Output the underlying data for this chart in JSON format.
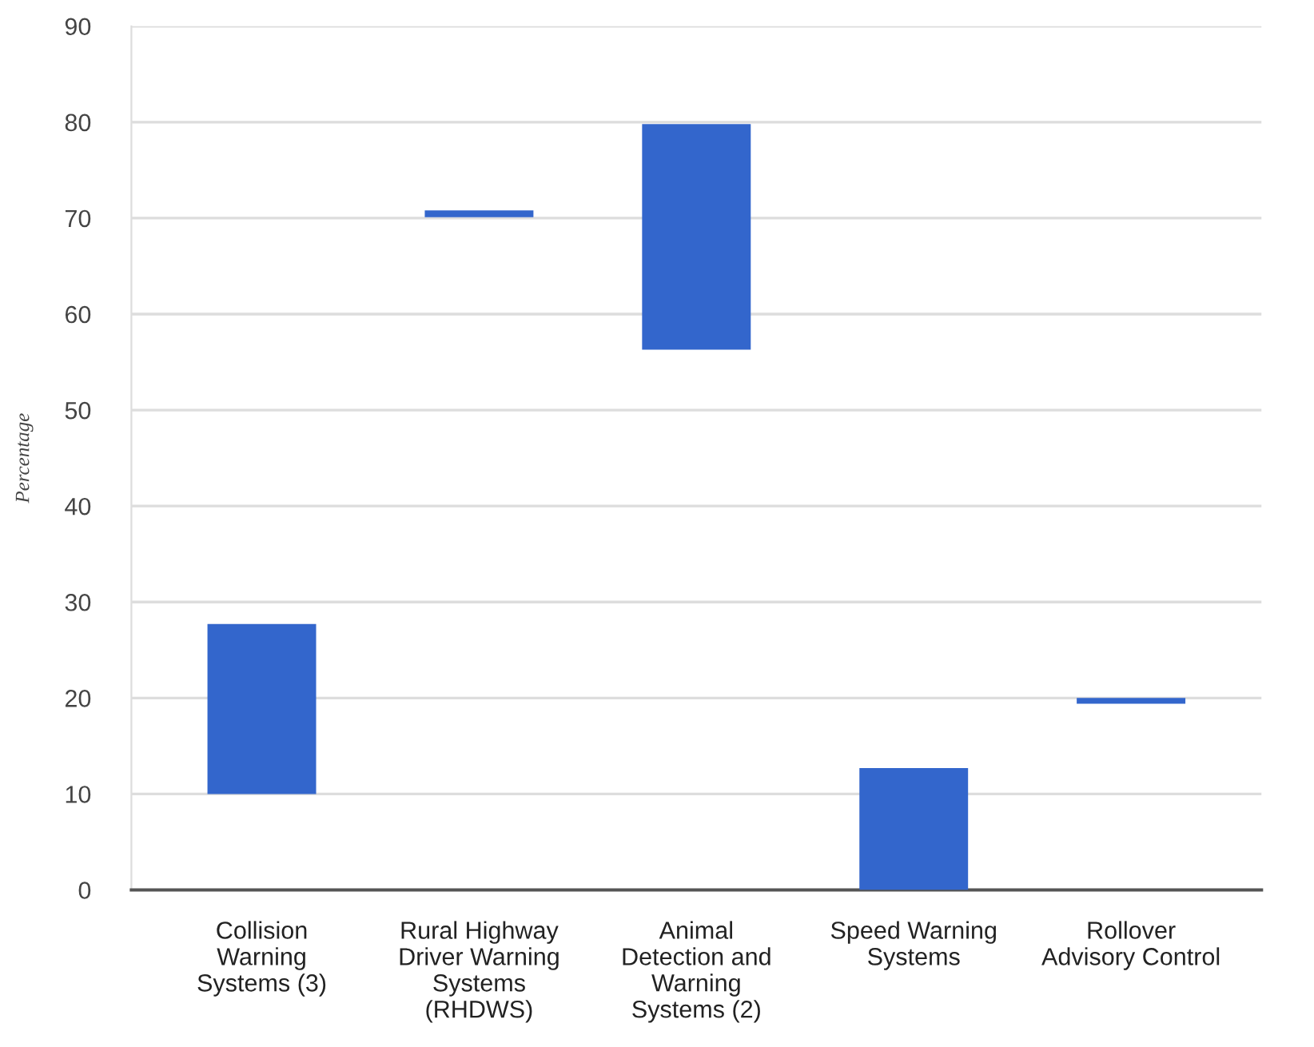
{
  "chart_data": {
    "type": "bar",
    "ylabel": "Percentage",
    "categories": [
      "Collision\nWarning\nSystems (3)",
      "Rural Highway\nDriver Warning\nSystems\n(RHDWS)",
      "Animal\nDetection and\nWarning\nSystems (2)",
      "Speed Warning\nSystems",
      "Rollover\nAdvisory Control"
    ],
    "base": [
      10,
      70.1,
      56.3,
      0,
      19.4
    ],
    "values": [
      17.7,
      0.7,
      23.5,
      12.7,
      0.6
    ],
    "color": "#3366cc",
    "ylim": [
      0,
      90
    ],
    "yticks": [
      0,
      10,
      20,
      30,
      40,
      50,
      60,
      70,
      80,
      90
    ],
    "grid": "y"
  }
}
